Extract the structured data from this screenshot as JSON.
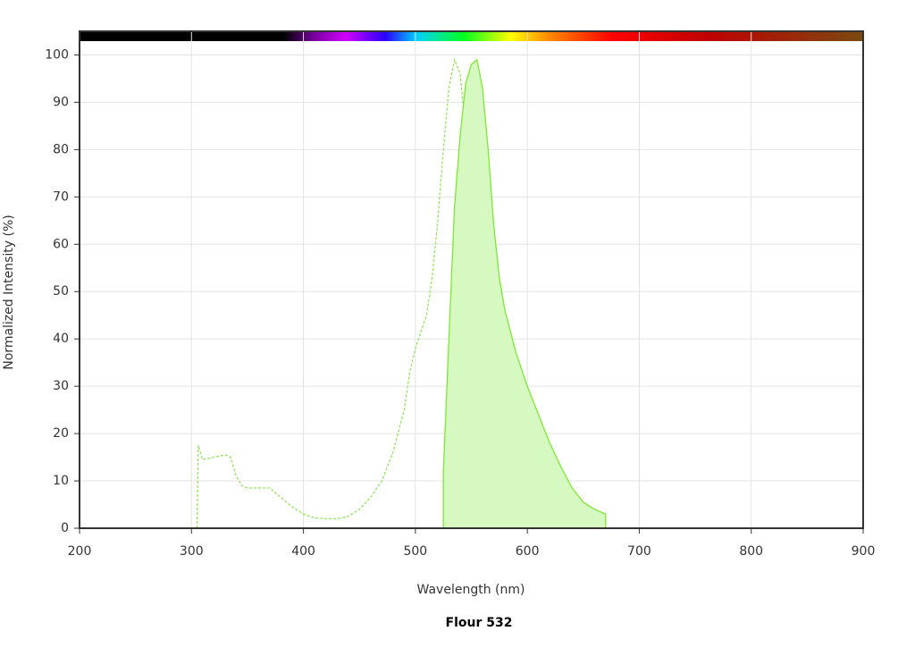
{
  "chart_data": {
    "type": "line",
    "title": "Flour 532",
    "x_label": "Wavelength (nm)",
    "y_label": "Normalized Intensity (%)",
    "xlim": [
      200,
      900
    ],
    "ylim": [
      0,
      105
    ],
    "xticks": [
      200,
      300,
      400,
      500,
      600,
      700,
      800,
      900
    ],
    "yticks": [
      0,
      10,
      20,
      30,
      40,
      50,
      60,
      70,
      80,
      90,
      100
    ],
    "grid": true,
    "series": [
      {
        "color": "#8fe85a",
        "dashed": true,
        "filled": false,
        "x": [
          305,
          306,
          310,
          320,
          330,
          335,
          340,
          345,
          350,
          360,
          370,
          380,
          390,
          400,
          410,
          420,
          430,
          440,
          450,
          460,
          470,
          480,
          490,
          495,
          500,
          510,
          515,
          520,
          525,
          530,
          535,
          540,
          545,
          550,
          555,
          560,
          565,
          570,
          580,
          600,
          620,
          640,
          660,
          670
        ],
        "values": [
          0,
          17.5,
          14.5,
          15,
          15.5,
          15,
          11,
          9,
          8.5,
          8.5,
          8.5,
          6.5,
          4.5,
          3,
          2.2,
          2,
          2,
          2.5,
          4,
          6.5,
          10,
          16,
          25,
          33,
          38,
          45,
          53,
          65,
          80,
          93,
          99,
          96,
          84,
          62,
          33,
          15,
          6,
          3,
          1.5,
          1,
          1,
          1,
          1,
          1
        ]
      },
      {
        "color": "#7ee834",
        "dashed": false,
        "filled": true,
        "fill": "#d6f9c2",
        "x": [
          525,
          525,
          530,
          535,
          540,
          545,
          550,
          555,
          560,
          565,
          570,
          575,
          580,
          590,
          600,
          610,
          620,
          630,
          640,
          650,
          660,
          670,
          670
        ],
        "values": [
          0,
          12,
          40,
          68,
          83,
          94,
          98,
          99,
          93,
          80,
          64,
          53,
          46,
          37,
          30,
          24,
          18,
          13,
          8.5,
          5.5,
          4,
          3,
          0
        ]
      }
    ]
  }
}
